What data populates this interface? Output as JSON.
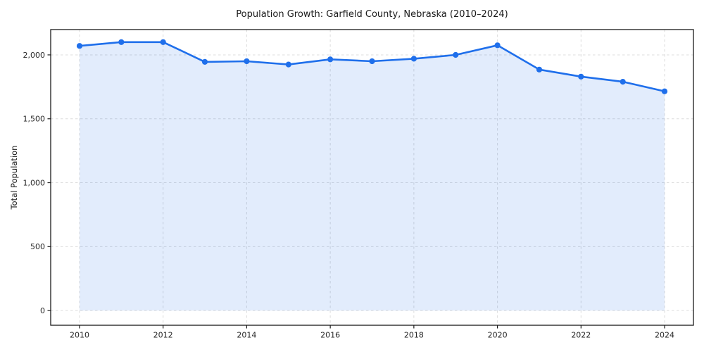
{
  "chart_data": {
    "type": "line",
    "title": "Population Growth: Garfield County, Nebraska (2010–2024)",
    "xlabel": "",
    "ylabel": "Total Population",
    "x": [
      2010,
      2011,
      2012,
      2013,
      2014,
      2015,
      2016,
      2017,
      2018,
      2019,
      2020,
      2021,
      2022,
      2023,
      2024
    ],
    "values": [
      2070,
      2100,
      2100,
      1945,
      1950,
      1925,
      1965,
      1950,
      1970,
      2000,
      2075,
      1885,
      1830,
      1790,
      1715
    ],
    "series_name": "Total Population",
    "xticks": {
      "values": [
        2010,
        2012,
        2014,
        2016,
        2018,
        2020,
        2022,
        2024
      ],
      "labels": [
        "2010",
        "2012",
        "2014",
        "2016",
        "2018",
        "2020",
        "2022",
        "2024"
      ]
    },
    "yticks": {
      "values": [
        0,
        500,
        1000,
        1500,
        2000
      ],
      "labels": [
        "0",
        "500",
        "1,000",
        "1,500",
        "2,000"
      ]
    },
    "xlim": [
      2009.31,
      2024.69
    ],
    "ylim": [
      -115,
      2198
    ],
    "grid": true,
    "legend": "none",
    "fill_to_zero": true,
    "colors": {
      "line": "#1f6feb",
      "fill": "rgba(31,111,235,0.13)",
      "grid": "#dcdcdc",
      "spine": "#1a1a1a",
      "tick_text": "#262626",
      "background": "#ffffff"
    }
  }
}
